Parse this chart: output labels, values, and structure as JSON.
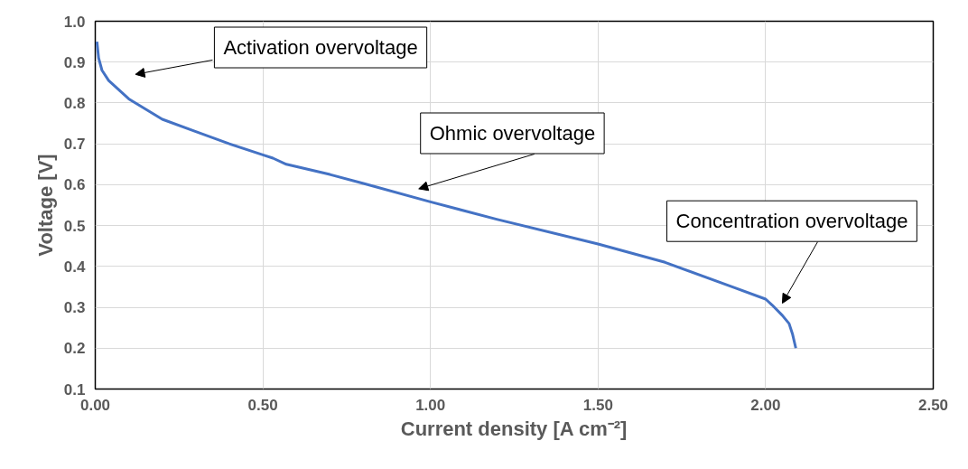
{
  "chart_data": {
    "type": "line",
    "xlabel": "Current density [A cm⁻²]",
    "ylabel": "Voltage [V]",
    "x": [
      0.005,
      0.01,
      0.02,
      0.04,
      0.06,
      0.1,
      0.15,
      0.2,
      0.3,
      0.4,
      0.5,
      0.53,
      0.57,
      0.7,
      0.8,
      1.0,
      1.2,
      1.5,
      1.7,
      1.9,
      2.0,
      2.02,
      2.05,
      2.07,
      2.08,
      2.09
    ],
    "series": [
      {
        "color": "#4472c4",
        "values": [
          0.95,
          0.91,
          0.88,
          0.855,
          0.84,
          0.81,
          0.785,
          0.76,
          0.73,
          0.7,
          0.673,
          0.665,
          0.65,
          0.625,
          0.603,
          0.558,
          0.515,
          0.455,
          0.41,
          0.35,
          0.32,
          0.305,
          0.28,
          0.26,
          0.235,
          0.2
        ]
      }
    ],
    "xlim": [
      0,
      2.5
    ],
    "ylim": [
      0.1,
      1.0
    ],
    "xticks": [
      {
        "value": 0,
        "label": "0.00"
      },
      {
        "value": 0.5,
        "label": "0.50"
      },
      {
        "value": 1,
        "label": "1.00"
      },
      {
        "value": 1.5,
        "label": "1.50"
      },
      {
        "value": 2,
        "label": "2.00"
      },
      {
        "value": 2.5,
        "label": "2.50"
      }
    ],
    "yticks": [
      0.1,
      0.2,
      0.3,
      0.4,
      0.5,
      0.6,
      0.7,
      0.8,
      0.9,
      {
        "value": 1,
        "label": "1.0"
      }
    ],
    "grid": true,
    "marker": "none",
    "line_style": "solid",
    "annotations": [
      "Activation overvoltage",
      "Ohmic overvoltage",
      "Concentration overvoltage"
    ]
  }
}
